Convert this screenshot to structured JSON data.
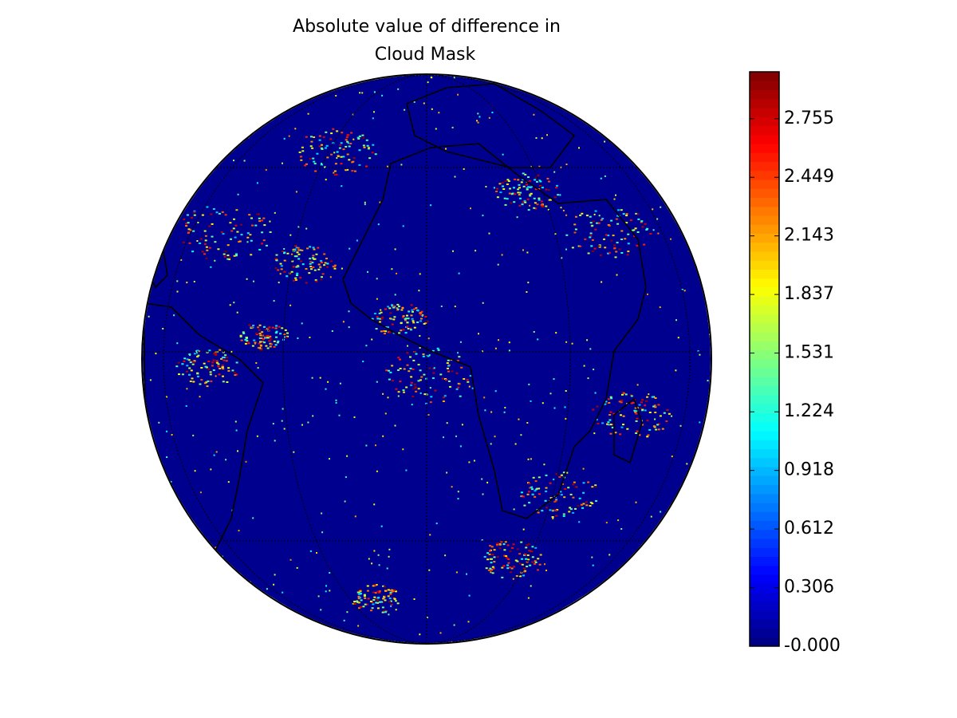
{
  "title_lines": [
    "Absolute value of difference in",
    "Cloud Mask"
  ],
  "colorbar": {
    "colormap": "jet",
    "lim": [
      0,
      3.0
    ],
    "ticks": [
      {
        "value": 0,
        "label": "-0.000"
      },
      {
        "value": 0.306,
        "label": "0.306"
      },
      {
        "value": 0.612,
        "label": "0.612"
      },
      {
        "value": 0.918,
        "label": "0.918"
      },
      {
        "value": 1.224,
        "label": "1.224"
      },
      {
        "value": 1.531,
        "label": "1.531"
      },
      {
        "value": 1.837,
        "label": "1.837"
      },
      {
        "value": 2.143,
        "label": "2.143"
      },
      {
        "value": 2.449,
        "label": "2.449"
      },
      {
        "value": 2.755,
        "label": "2.755"
      }
    ]
  }
}
